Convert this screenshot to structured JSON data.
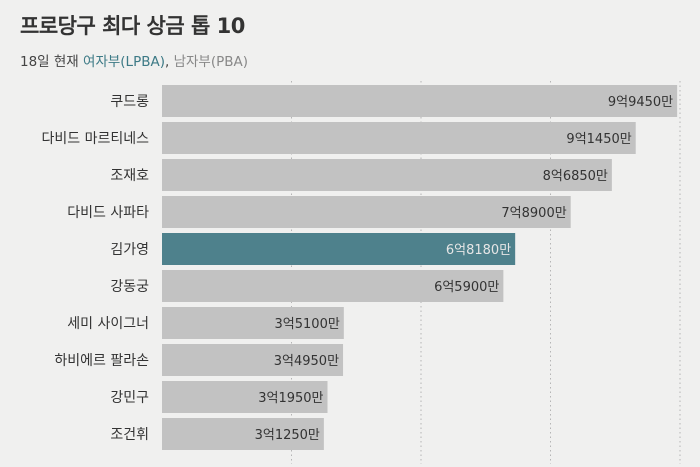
{
  "header": {
    "title": "프로당구 최다 상금 톱 10",
    "subtitle_prefix": "18일 현재 ",
    "subtitle_highlight": "여자부(LPBA)",
    "subtitle_sep": ", ",
    "subtitle_mute": "남자부(PBA)"
  },
  "colors": {
    "background": "#f0f0ef",
    "bar_default": "#c2c2c2",
    "bar_highlight": "#4e818c",
    "label_on_highlight": "#e6e6e6",
    "grid": "#b5b5b5"
  },
  "chart_data": {
    "type": "bar",
    "orientation": "horizontal",
    "title": "프로당구 최다 상금 톱 10",
    "subtitle": "18일 현재 여자부(LPBA), 남자부(PBA)",
    "categories": [
      "쿠드롱",
      "다비드 마르티네스",
      "조재호",
      "다비드 사파타",
      "김가영",
      "강동궁",
      "세미 사이그너",
      "하비에르 팔라손",
      "강민구",
      "조건휘"
    ],
    "values": [
      994500000,
      914500000,
      868500000,
      789000000,
      681800000,
      659000000,
      351000000,
      349500000,
      319500000,
      312500000
    ],
    "value_labels": [
      "9억9450만",
      "9억1450만",
      "8억6850만",
      "7억8900만",
      "6억8180만",
      "6억5900만",
      "3억5100만",
      "3억4950만",
      "3억1950만",
      "3억1250만"
    ],
    "highlight": [
      "김가영"
    ],
    "xlim": [
      0,
      1000000000
    ],
    "grid": "vertical-dotted",
    "xlabel": "",
    "ylabel": ""
  }
}
